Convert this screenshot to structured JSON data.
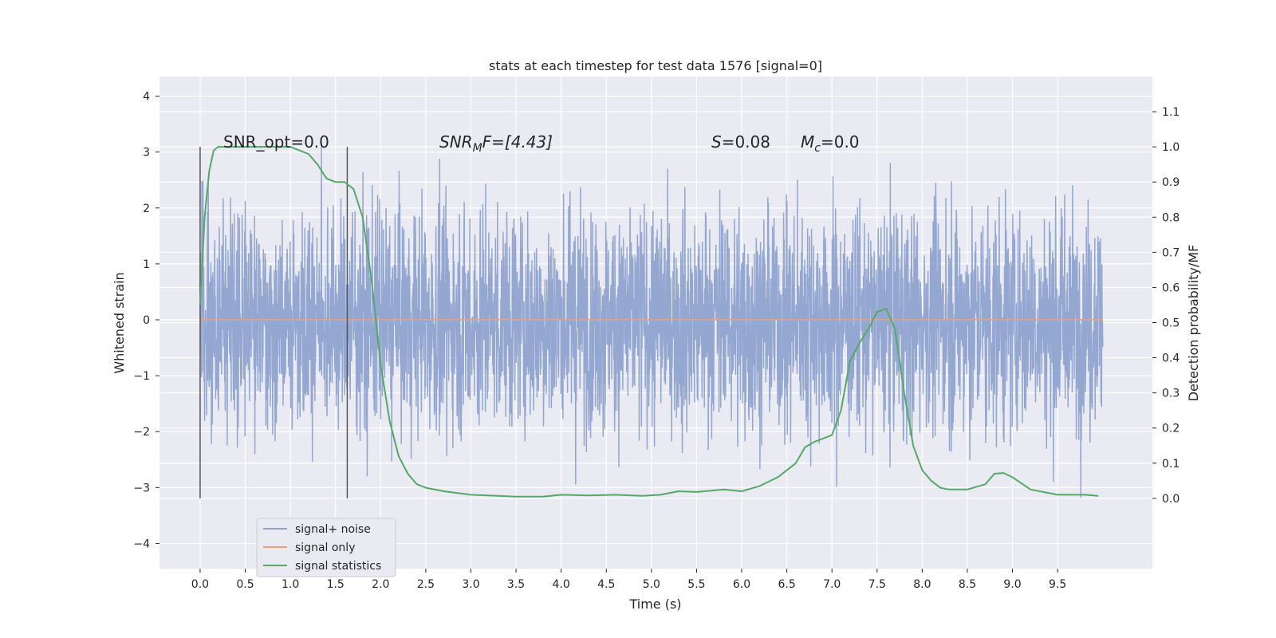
{
  "chart_data": {
    "type": "line",
    "title": "stats at each timestep for test data 1576 [signal=0]",
    "xlabel": "Time (s)",
    "ylabel_left": "Whitened strain",
    "ylabel_right": "Detection probability/MF",
    "xlim": [
      -0.45,
      10.55
    ],
    "ylim_left": [
      -4.45,
      4.35
    ],
    "ylim_right": [
      -0.2,
      1.2
    ],
    "x_ticks": [
      "0.0",
      "0.5",
      "1.0",
      "1.5",
      "2.0",
      "2.5",
      "3.0",
      "3.5",
      "4.0",
      "4.5",
      "5.0",
      "5.5",
      "6.0",
      "6.5",
      "7.0",
      "7.5",
      "8.0",
      "8.5",
      "9.0",
      "9.5"
    ],
    "y_left_ticks": [
      4,
      3,
      2,
      1,
      0,
      -1,
      -2,
      -3,
      -4
    ],
    "y_left_tick_labels": [
      "4",
      "3",
      "2",
      "1",
      "0",
      "−1",
      "−2",
      "−3",
      "−4"
    ],
    "y_right_ticks": [
      1.1,
      1.0,
      0.9,
      0.8,
      0.7,
      0.6,
      0.5,
      0.4,
      0.3,
      0.2,
      0.1,
      0.0
    ],
    "y_right_tick_labels": [
      "1.1",
      "1.0",
      "0.9",
      "0.8",
      "0.7",
      "0.6",
      "0.5",
      "0.4",
      "0.3",
      "0.2",
      "0.1",
      "0.0"
    ],
    "grid": true,
    "legend_position": "lower-left",
    "annotations": {
      "snr_opt": "SNR_opt=0.0",
      "snr_mf_prefix": "SNR",
      "snr_mf_sub": "M",
      "snr_mf_suffix": "F=[4.43]",
      "s_prefix": "S",
      "s_value": "=0.08",
      "mc_prefix": "M",
      "mc_sub": "c",
      "mc_value": "=0.0"
    },
    "vertical_markers": [
      0.0,
      1.63
    ],
    "series": [
      {
        "name": "signal+ noise",
        "color": "#8fa3cf",
        "axis": "left",
        "kind": "noise",
        "t_range": [
          0.0,
          10.0
        ],
        "band_sigma": 1.0,
        "amplitude_range": [
          -4.05,
          3.95
        ]
      },
      {
        "name": "signal only",
        "color": "#e8a083",
        "axis": "left",
        "kind": "flat",
        "t_range": [
          0.0,
          10.0
        ],
        "value": 0.0
      },
      {
        "name": "signal statistics",
        "color": "#55a868",
        "axis": "right",
        "kind": "line",
        "x": [
          0.0,
          0.05,
          0.1,
          0.15,
          0.2,
          0.3,
          0.5,
          0.8,
          1.0,
          1.1,
          1.2,
          1.3,
          1.4,
          1.5,
          1.6,
          1.7,
          1.8,
          1.9,
          2.0,
          2.1,
          2.2,
          2.3,
          2.4,
          2.5,
          2.7,
          3.0,
          3.5,
          3.8,
          4.0,
          4.3,
          4.6,
          4.9,
          5.1,
          5.3,
          5.5,
          5.8,
          6.0,
          6.2,
          6.4,
          6.6,
          6.7,
          6.8,
          6.9,
          7.0,
          7.1,
          7.2,
          7.3,
          7.4,
          7.5,
          7.6,
          7.7,
          7.8,
          7.9,
          8.0,
          8.1,
          8.2,
          8.3,
          8.5,
          8.7,
          8.8,
          8.9,
          9.0,
          9.2,
          9.5,
          9.8,
          9.95
        ],
        "y": [
          0.55,
          0.8,
          0.93,
          0.99,
          1.0,
          1.0,
          1.0,
          1.0,
          1.0,
          0.99,
          0.98,
          0.95,
          0.91,
          0.9,
          0.9,
          0.88,
          0.8,
          0.62,
          0.38,
          0.22,
          0.12,
          0.07,
          0.04,
          0.03,
          0.02,
          0.01,
          0.005,
          0.005,
          0.01,
          0.008,
          0.01,
          0.007,
          0.01,
          0.02,
          0.018,
          0.025,
          0.02,
          0.035,
          0.06,
          0.1,
          0.145,
          0.16,
          0.17,
          0.18,
          0.25,
          0.39,
          0.44,
          0.48,
          0.53,
          0.54,
          0.48,
          0.3,
          0.15,
          0.08,
          0.05,
          0.03,
          0.025,
          0.025,
          0.04,
          0.07,
          0.072,
          0.06,
          0.025,
          0.01,
          0.01,
          0.007
        ]
      }
    ]
  }
}
